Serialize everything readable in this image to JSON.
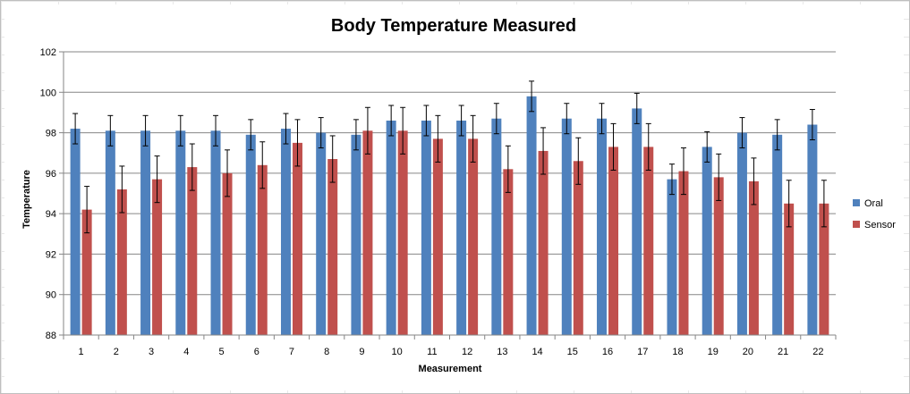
{
  "chart_data": {
    "type": "bar",
    "title": "Body Temperature Measured",
    "xlabel": "Measurement",
    "ylabel": "Temperature",
    "ylim": [
      88,
      102
    ],
    "yticks": [
      88,
      90,
      92,
      94,
      96,
      98,
      100,
      102
    ],
    "grid": true,
    "legend_position": "right",
    "categories": [
      "1",
      "2",
      "3",
      "4",
      "5",
      "6",
      "7",
      "8",
      "9",
      "10",
      "11",
      "12",
      "13",
      "14",
      "15",
      "16",
      "17",
      "18",
      "19",
      "20",
      "21",
      "22"
    ],
    "series": [
      {
        "name": "Oral",
        "color": "#4f81bd",
        "values": [
          98.2,
          98.1,
          98.1,
          98.1,
          98.1,
          97.9,
          98.2,
          98.0,
          97.9,
          98.6,
          98.6,
          98.6,
          98.7,
          99.8,
          98.7,
          98.7,
          99.2,
          95.7,
          97.3,
          98.0,
          97.9,
          98.4
        ],
        "error": 0.75
      },
      {
        "name": "Sensor",
        "color": "#c0504d",
        "values": [
          94.2,
          95.2,
          95.7,
          96.3,
          96.0,
          96.4,
          97.5,
          96.7,
          98.1,
          98.1,
          97.7,
          97.7,
          96.2,
          97.1,
          96.6,
          97.3,
          97.3,
          96.1,
          95.8,
          95.6,
          94.5,
          94.5
        ],
        "error": 1.15
      }
    ]
  }
}
